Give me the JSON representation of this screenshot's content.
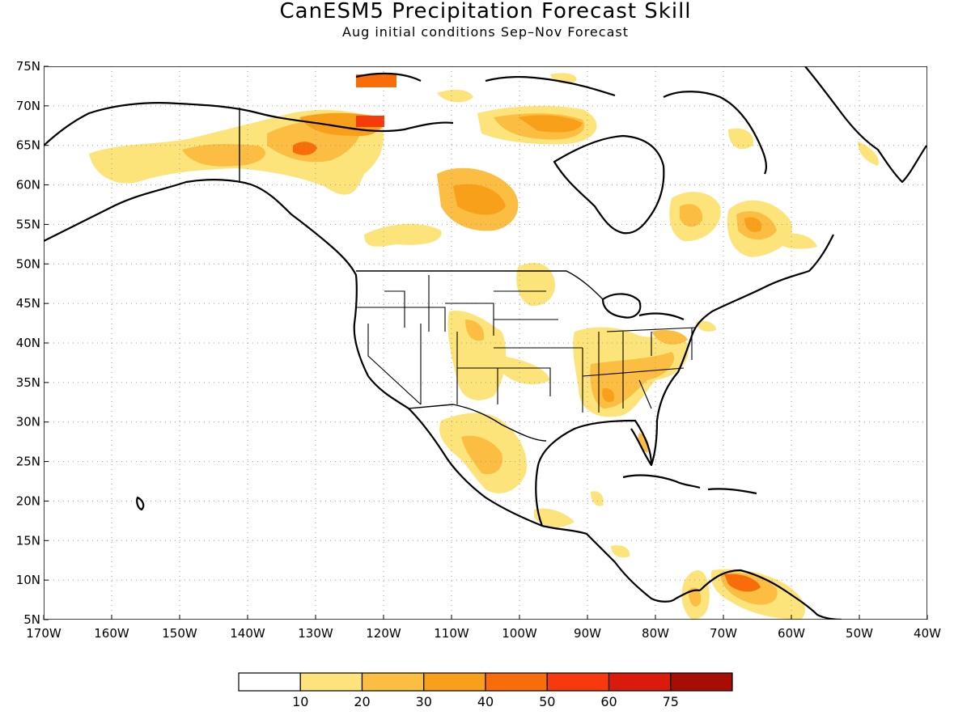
{
  "title": "CanESM5 Precipitation Forecast Skill",
  "subtitle": "Aug initial conditions  Sep–Nov Forecast",
  "map": {
    "lon_range": [
      -170,
      -40
    ],
    "lat_range": [
      5,
      75
    ],
    "x_tick_labels": [
      "170W",
      "160W",
      "150W",
      "140W",
      "130W",
      "120W",
      "110W",
      "100W",
      "90W",
      "80W",
      "70W",
      "60W",
      "50W",
      "40W"
    ],
    "y_tick_labels": [
      "5N",
      "10N",
      "15N",
      "20N",
      "25N",
      "30N",
      "35N",
      "40N",
      "45N",
      "50N",
      "55N",
      "60N",
      "65N",
      "70N",
      "75N"
    ],
    "grid": true
  },
  "colorbar": {
    "tick_labels": [
      "10",
      "20",
      "30",
      "40",
      "50",
      "60",
      "75"
    ],
    "colors": [
      "#ffffff",
      "#fde47a",
      "#fbbe43",
      "#f8a01a",
      "#f86d09",
      "#f63a0b",
      "#da1b0b",
      "#a70c05"
    ]
  }
}
